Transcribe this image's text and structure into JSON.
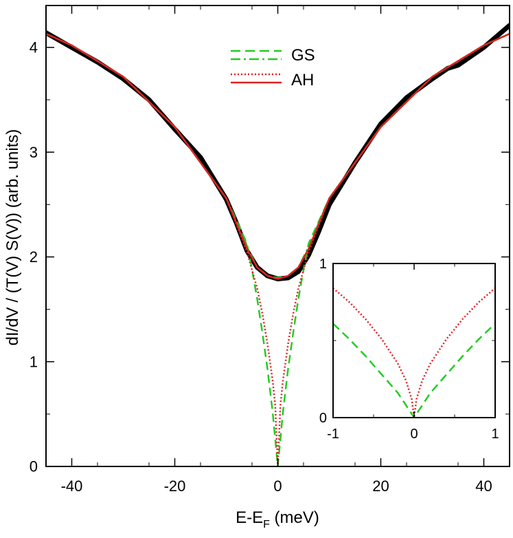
{
  "chart_data": {
    "type": "line",
    "main": {
      "xlabel_main": "E-E",
      "xlabel_sub": "F",
      "xlabel_unit": " (meV)",
      "ylabel": "dI/dV / (T(V) S(V)) (arb. units)",
      "xlim": [
        -45,
        45
      ],
      "ylim": [
        0,
        4.4
      ],
      "xticks": [
        -40,
        -20,
        0,
        20,
        40
      ],
      "yticks": [
        0,
        1,
        2,
        3,
        4
      ],
      "xtick_labels": [
        "-40",
        "-20",
        "0",
        "20",
        "40"
      ],
      "ytick_labels": [
        "0",
        "1",
        "2",
        "3",
        "4"
      ],
      "legend_position": "top-center",
      "legend": [
        {
          "group": "GS",
          "label": "GS",
          "lines": [
            "dash",
            "dashdot"
          ],
          "color": "#22cc22"
        },
        {
          "group": "AH",
          "label": "AH",
          "lines": [
            "dot",
            "solid"
          ],
          "color": "#dd2222"
        }
      ],
      "measured": {
        "color": "#000000",
        "x": [
          -45,
          -40,
          -35,
          -30,
          -25,
          -20,
          -15,
          -10,
          -8,
          -6,
          -4,
          -2,
          0,
          2,
          4,
          6,
          8,
          10,
          15,
          20,
          25,
          30,
          33,
          35,
          40,
          45
        ],
        "y": [
          4.14,
          4.0,
          3.86,
          3.7,
          3.5,
          3.22,
          2.95,
          2.55,
          2.32,
          2.06,
          1.9,
          1.82,
          1.79,
          1.8,
          1.86,
          2.02,
          2.25,
          2.5,
          2.9,
          3.27,
          3.52,
          3.7,
          3.8,
          3.83,
          4.0,
          4.21
        ]
      },
      "series": [
        {
          "name": "GS",
          "style": "dash",
          "color": "#22cc22",
          "x": [
            -45,
            -40,
            -30,
            -20,
            -10,
            -6,
            -5,
            -4,
            -3,
            -2,
            -1,
            -0.5,
            0,
            0.5,
            1,
            2,
            3,
            4,
            5,
            6,
            10,
            20,
            30,
            40,
            45
          ],
          "y": [
            4.13,
            4.02,
            3.72,
            3.24,
            2.56,
            2.13,
            1.88,
            1.6,
            1.28,
            0.93,
            0.52,
            0.26,
            0.0,
            0.26,
            0.52,
            0.93,
            1.28,
            1.6,
            1.88,
            2.13,
            2.56,
            3.24,
            3.72,
            4.02,
            4.13
          ]
        },
        {
          "name": "GS",
          "style": "dashdot",
          "color": "#22cc22",
          "x": [
            -45,
            -40,
            -30,
            -20,
            -10,
            -6,
            -4,
            -2,
            0,
            2,
            4,
            6,
            10,
            20,
            30,
            40,
            45
          ],
          "y": [
            4.13,
            4.02,
            3.72,
            3.24,
            2.56,
            2.1,
            1.9,
            1.82,
            1.8,
            1.82,
            1.9,
            2.1,
            2.56,
            3.24,
            3.72,
            4.02,
            4.13
          ]
        },
        {
          "name": "AH",
          "style": "dot",
          "color": "#dd2222",
          "x": [
            -45,
            -40,
            -30,
            -20,
            -10,
            -6,
            -4,
            -3,
            -2,
            -1,
            -0.5,
            0,
            0.5,
            1,
            2,
            3,
            4,
            6,
            10,
            20,
            30,
            40,
            45
          ],
          "y": [
            4.13,
            4.02,
            3.72,
            3.24,
            2.56,
            2.05,
            1.7,
            1.46,
            1.17,
            0.82,
            0.58,
            0.0,
            0.58,
            0.82,
            1.17,
            1.46,
            1.7,
            2.05,
            2.56,
            3.24,
            3.72,
            4.02,
            4.13
          ]
        },
        {
          "name": "AH",
          "style": "solid",
          "color": "#dd2222",
          "x": [
            -45,
            -40,
            -30,
            -20,
            -10,
            -6,
            -4,
            -2,
            0,
            2,
            4,
            6,
            10,
            20,
            30,
            40,
            45
          ],
          "y": [
            4.13,
            4.02,
            3.72,
            3.24,
            2.56,
            2.08,
            1.9,
            1.82,
            1.79,
            1.82,
            1.9,
            2.08,
            2.56,
            3.24,
            3.72,
            4.02,
            4.13
          ]
        }
      ]
    },
    "inset": {
      "xlim": [
        -1,
        1
      ],
      "ylim": [
        0,
        1
      ],
      "xticks": [
        -1,
        0,
        1
      ],
      "yticks": [
        0,
        1
      ],
      "xtick_labels": [
        "-1",
        "0",
        "1"
      ],
      "ytick_labels": [
        "0",
        "1"
      ],
      "series": [
        {
          "name": "GS",
          "style": "dash",
          "color": "#22cc22",
          "x": [
            -1,
            -0.8,
            -0.6,
            -0.4,
            -0.2,
            -0.1,
            0,
            0.1,
            0.2,
            0.4,
            0.6,
            0.8,
            1
          ],
          "y": [
            0.61,
            0.51,
            0.4,
            0.28,
            0.16,
            0.08,
            0.0,
            0.08,
            0.16,
            0.28,
            0.4,
            0.51,
            0.61
          ]
        },
        {
          "name": "AH",
          "style": "dot",
          "color": "#dd2222",
          "x": [
            -1,
            -0.8,
            -0.6,
            -0.4,
            -0.2,
            -0.1,
            -0.03,
            0,
            0.03,
            0.1,
            0.2,
            0.4,
            0.6,
            0.8,
            1
          ],
          "y": [
            0.84,
            0.75,
            0.64,
            0.51,
            0.35,
            0.24,
            0.12,
            0.0,
            0.12,
            0.24,
            0.35,
            0.51,
            0.64,
            0.75,
            0.84
          ]
        }
      ]
    }
  }
}
